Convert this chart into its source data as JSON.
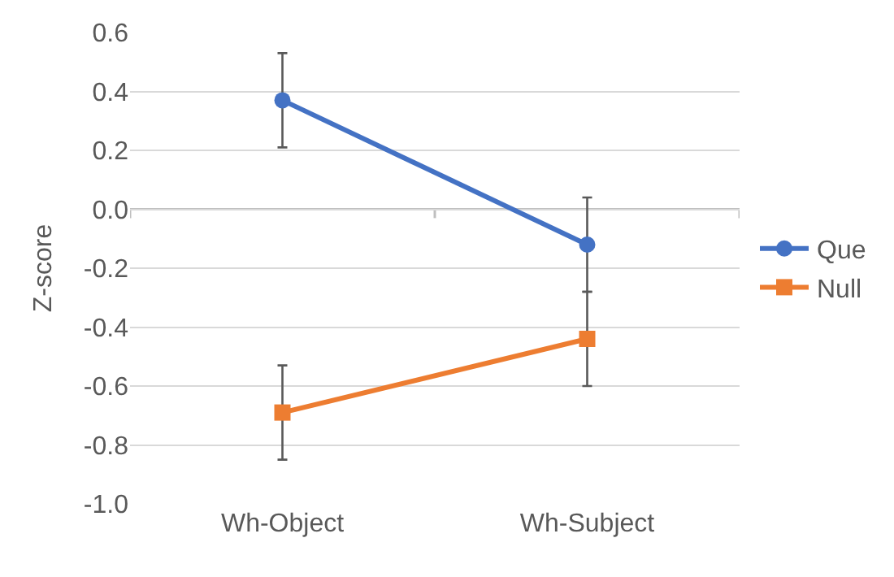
{
  "chart_data": {
    "type": "line",
    "ylabel": "Z-score",
    "categories": [
      "Wh-Object",
      "Wh-Subject"
    ],
    "series": [
      {
        "name": "Que",
        "color": "#4472c4",
        "values": [
          0.37,
          -0.12
        ],
        "errors": [
          0.16,
          0.16
        ],
        "marker": "circle"
      },
      {
        "name": "Null",
        "color": "#ed7d31",
        "values": [
          -0.69,
          -0.44
        ],
        "errors": [
          0.16,
          0.16
        ],
        "marker": "square"
      }
    ],
    "ylim": [
      -1.0,
      0.6
    ],
    "yticks": [
      {
        "value": -1.0,
        "label": "-1.0"
      },
      {
        "value": -0.8,
        "label": "-0.8"
      },
      {
        "value": -0.6,
        "label": "-0.6"
      },
      {
        "value": -0.4,
        "label": "-0.4"
      },
      {
        "value": -0.2,
        "label": "-0.2"
      },
      {
        "value": 0.0,
        "label": "0.0"
      },
      {
        "value": 0.2,
        "label": "0.2"
      },
      {
        "value": 0.4,
        "label": "0.4"
      },
      {
        "value": 0.6,
        "label": "0.6"
      }
    ],
    "grid": "y",
    "legend": "right"
  }
}
